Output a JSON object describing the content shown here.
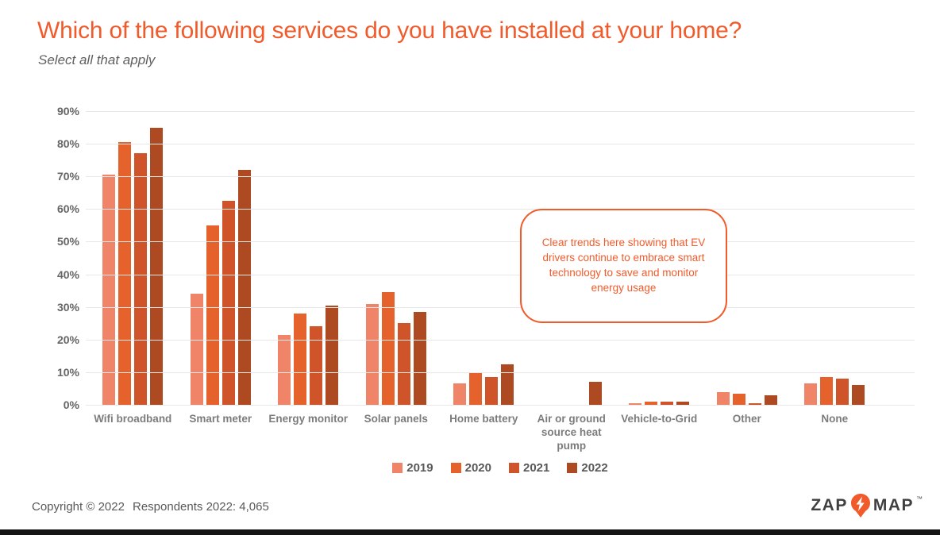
{
  "slide": {
    "title": "Which of the following services do you have installed at your home?",
    "subtitle": "Select all that apply",
    "annotation": "Clear trends here showing that EV drivers continue to embrace smart technology to save and monitor energy usage",
    "footer": {
      "copyright": "Copyright © 2022",
      "respondents": "Respondents 2022: 4,065"
    },
    "logo": {
      "zap": "ZAP",
      "map": "MAP",
      "trademark": "™"
    }
  },
  "colors": {
    "accent_orange": "#F15B2B",
    "series_2019": "#F08468",
    "series_2020": "#E5622D",
    "series_2021": "#D05429",
    "series_2022": "#AE4A22",
    "gridline": "#E8E8E8",
    "axis_text": "#666666",
    "category_text": "#7C7C7C",
    "footer_text": "#595959",
    "logo_text": "#404040",
    "bottom_bar": "#141414"
  },
  "chart_data": {
    "type": "bar",
    "title": "Which of the following services do you have installed at your home?",
    "subtitle": "Select all that apply",
    "categories": [
      "Wifi broadband",
      "Smart meter",
      "Energy monitor",
      "Solar panels",
      "Home battery",
      "Air or ground source heat pump",
      "Vehicle-to-Grid",
      "Other",
      "None"
    ],
    "series": [
      {
        "name": "2019",
        "color": "#F08468",
        "values": [
          70.5,
          34,
          21.5,
          31,
          6.5,
          0,
          0.5,
          4,
          6.5
        ]
      },
      {
        "name": "2020",
        "color": "#E5622D",
        "values": [
          80.5,
          55,
          28,
          34.5,
          10,
          0,
          1,
          3.5,
          8.5
        ]
      },
      {
        "name": "2021",
        "color": "#D05429",
        "values": [
          77,
          62.5,
          24,
          25,
          8.5,
          0,
          1,
          0.5,
          8
        ]
      },
      {
        "name": "2022",
        "color": "#AE4A22",
        "values": [
          85,
          72,
          30.5,
          28.5,
          12.5,
          7,
          1,
          3,
          6
        ]
      }
    ],
    "xlabel": "",
    "ylabel": "",
    "ylim": [
      0,
      90
    ],
    "y_tick_step": 10,
    "y_ticks": [
      "0%",
      "10%",
      "20%",
      "30%",
      "40%",
      "50%",
      "60%",
      "70%",
      "80%",
      "90%"
    ],
    "grid": true,
    "legend_position": "bottom"
  }
}
